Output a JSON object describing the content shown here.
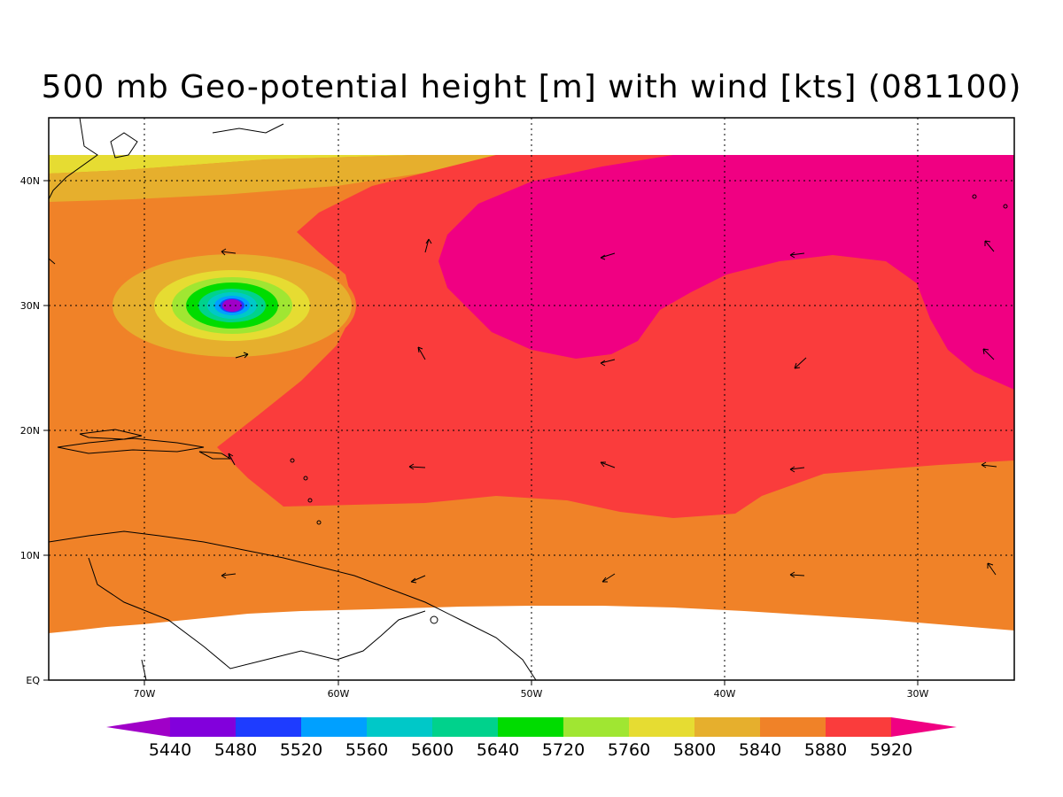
{
  "title": "500 mb Geo-potential height [m] with wind [kts] (081100)",
  "axes": {
    "x_ticks": [
      "70W",
      "60W",
      "50W",
      "40W",
      "30W"
    ],
    "y_ticks": [
      "EQ",
      "10N",
      "20N",
      "30N",
      "40N"
    ]
  },
  "colorbar": {
    "labels": [
      "5440",
      "5480",
      "5520",
      "5560",
      "5600",
      "5640",
      "5720",
      "5760",
      "5800",
      "5840",
      "5880",
      "5920"
    ],
    "colors": [
      "#a000c8",
      "#8200dc",
      "#1e3cff",
      "#00a0ff",
      "#00c8c8",
      "#00d28c",
      "#00dc00",
      "#a0e632",
      "#e6dc32",
      "#e6af2d",
      "#f08228",
      "#fa3c3c",
      "#f00082"
    ]
  },
  "fields": {
    "background": "#f08228",
    "band_5840": "#e6af2d",
    "band_5880": "#fa3c3c",
    "band_5920": "#f00082",
    "missing": "#ffffff"
  }
}
